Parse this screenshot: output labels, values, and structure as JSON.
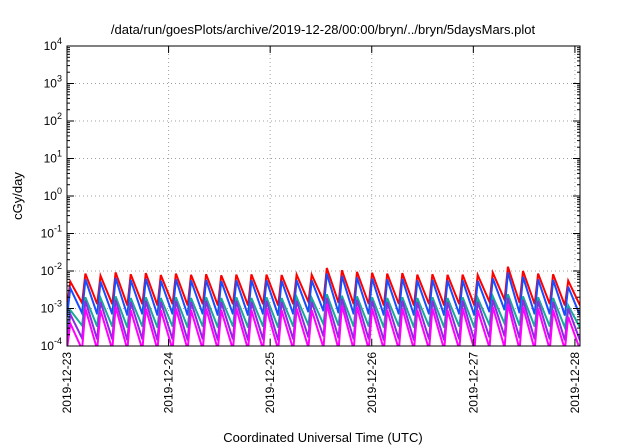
{
  "chart_data": {
    "type": "line",
    "title": "/data/run/goesPlots/archive/2019-12-28/00:00/bryn/../bryn/5daysMars.plot",
    "xlabel": "Coordinated Universal Time (UTC)",
    "ylabel": "cGy/day",
    "yscale": "log",
    "ylim": [
      0.0001,
      10000
    ],
    "xlim": [
      0,
      5.05
    ],
    "x_tick_values": [
      0,
      1,
      2,
      3,
      4,
      5
    ],
    "x_tick_labels": [
      "2019-12-23",
      "2019-12-24",
      "2019-12-25",
      "2019-12-26",
      "2019-12-27",
      "2019-12-28"
    ],
    "y_ticks": [
      {
        "base": "10",
        "exp": "4",
        "value": 10000
      },
      {
        "base": "10",
        "exp": "3",
        "value": 1000
      },
      {
        "base": "10",
        "exp": "2",
        "value": 100
      },
      {
        "base": "10",
        "exp": "1",
        "value": 10
      },
      {
        "base": "10",
        "exp": "0",
        "value": 1
      },
      {
        "base": "10",
        "exp": "-1",
        "value": 0.1
      },
      {
        "base": "10",
        "exp": "-2",
        "value": 0.01
      },
      {
        "base": "10",
        "exp": "-3",
        "value": 0.001
      },
      {
        "base": "10",
        "exp": "-4",
        "value": 0.0001
      }
    ],
    "grid": true,
    "series": [
      {
        "name": "series-red",
        "color": "#ff0000",
        "peaks": [
          0.0052,
          0.0085,
          0.0075,
          0.0092,
          0.0082,
          0.0088,
          0.0078,
          0.0085,
          0.0079,
          0.0082,
          0.0077,
          0.008,
          0.0081,
          0.008,
          0.0078,
          0.008,
          0.0079,
          0.012,
          0.0105,
          0.0095,
          0.009,
          0.0085,
          0.0088,
          0.008,
          0.0082,
          0.0079,
          0.008,
          0.0078,
          0.009,
          0.013,
          0.01,
          0.0085,
          0.0082,
          0.0055
        ],
        "troughs": [
          0.0011,
          0.0014,
          0.0013,
          0.0013,
          0.0012,
          0.0013,
          0.0012,
          0.0013,
          0.0012,
          0.0013,
          0.0012,
          0.0013,
          0.0012,
          0.0013,
          0.0012,
          0.0013,
          0.0015,
          0.0016,
          0.0014,
          0.0013,
          0.0013,
          0.0012,
          0.0013,
          0.0012,
          0.0013,
          0.0012,
          0.0013,
          0.0012,
          0.0015,
          0.0017,
          0.0014,
          0.0013,
          0.0013,
          0.0012
        ]
      },
      {
        "name": "series-blue",
        "color": "#1a4cff",
        "peaks": [
          0.0035,
          0.006,
          0.0052,
          0.0065,
          0.0058,
          0.0062,
          0.0055,
          0.006,
          0.0056,
          0.0058,
          0.0054,
          0.0056,
          0.0057,
          0.0056,
          0.0055,
          0.0056,
          0.0056,
          0.0085,
          0.0074,
          0.0067,
          0.0063,
          0.006,
          0.0062,
          0.0056,
          0.0058,
          0.0056,
          0.0056,
          0.0055,
          0.0063,
          0.0092,
          0.007,
          0.006,
          0.0058,
          0.0038
        ],
        "troughs": [
          0.0006,
          0.00075,
          0.0007,
          0.0007,
          0.00065,
          0.0007,
          0.00065,
          0.0007,
          0.00065,
          0.0007,
          0.00065,
          0.0007,
          0.00065,
          0.0007,
          0.00065,
          0.0007,
          0.0008,
          0.00085,
          0.00075,
          0.0007,
          0.0007,
          0.00065,
          0.0007,
          0.00065,
          0.0007,
          0.00065,
          0.0007,
          0.00065,
          0.0008,
          0.0009,
          0.00075,
          0.0007,
          0.0007,
          0.00065
        ]
      },
      {
        "name": "series-teal",
        "color": "#18a89a",
        "peaks": [
          0.0009,
          0.002,
          0.0019,
          0.0021,
          0.0019,
          0.002,
          0.0019,
          0.002,
          0.0019,
          0.002,
          0.0019,
          0.002,
          0.0019,
          0.002,
          0.0019,
          0.002,
          0.0019,
          0.0024,
          0.0022,
          0.0021,
          0.002,
          0.0019,
          0.002,
          0.0019,
          0.002,
          0.0019,
          0.002,
          0.0019,
          0.0021,
          0.0024,
          0.0021,
          0.002,
          0.0019,
          0.0012
        ],
        "troughs": [
          0.00028,
          0.00035,
          0.00033,
          0.00033,
          0.00031,
          0.00033,
          0.00031,
          0.00033,
          0.00031,
          0.00033,
          0.00031,
          0.00033,
          0.00031,
          0.00033,
          0.00031,
          0.00033,
          0.00036,
          0.00038,
          0.00035,
          0.00033,
          0.00033,
          0.00031,
          0.00033,
          0.00031,
          0.00033,
          0.00031,
          0.00033,
          0.00031,
          0.00036,
          0.00039,
          0.00035,
          0.00033,
          0.00033,
          0.00031
        ]
      },
      {
        "name": "series-purple",
        "color": "#8b2be2",
        "peaks": [
          0.0007,
          0.0016,
          0.0015,
          0.0017,
          0.0015,
          0.0016,
          0.0015,
          0.0016,
          0.0015,
          0.0016,
          0.0015,
          0.0016,
          0.0015,
          0.0016,
          0.0015,
          0.0016,
          0.0015,
          0.0019,
          0.0018,
          0.0017,
          0.0016,
          0.0015,
          0.0016,
          0.0015,
          0.0016,
          0.0015,
          0.0016,
          0.0015,
          0.0017,
          0.0019,
          0.0017,
          0.0016,
          0.0015,
          0.001
        ],
        "troughs": [
          0.00012,
          0.00016,
          0.00015,
          0.00015,
          0.00014,
          0.00015,
          0.00014,
          0.00015,
          0.00014,
          0.00015,
          0.00014,
          0.00015,
          0.00014,
          0.00015,
          0.00014,
          0.00015,
          0.00017,
          0.00018,
          0.00016,
          0.00015,
          0.00015,
          0.00014,
          0.00015,
          0.00014,
          0.00015,
          0.00014,
          0.00015,
          0.00014,
          0.00017,
          0.00018,
          0.00016,
          0.00015,
          0.00015,
          0.00014
        ]
      },
      {
        "name": "series-magenta",
        "color": "#ff00ff",
        "peaks": [
          0.0004,
          0.001,
          0.0009,
          0.0011,
          0.0009,
          0.001,
          0.0009,
          0.001,
          0.0009,
          0.001,
          0.0009,
          0.001,
          0.0009,
          0.001,
          0.0009,
          0.001,
          0.0009,
          0.0013,
          0.0012,
          0.0011,
          0.001,
          0.0009,
          0.001,
          0.0009,
          0.001,
          0.0009,
          0.001,
          0.0009,
          0.0011,
          0.0013,
          0.0011,
          0.001,
          0.0009,
          0.0006
        ],
        "troughs": [
          8e-05,
          8e-05,
          8e-05,
          8e-05,
          8e-05,
          8e-05,
          8e-05,
          8e-05,
          8e-05,
          8e-05,
          8e-05,
          8e-05,
          8e-05,
          8e-05,
          8e-05,
          8e-05,
          9e-05,
          9e-05,
          8e-05,
          8e-05,
          8e-05,
          8e-05,
          8e-05,
          8e-05,
          8e-05,
          8e-05,
          8e-05,
          8e-05,
          9e-05,
          9e-05,
          8e-05,
          8e-05,
          8e-05,
          8e-05
        ]
      }
    ]
  }
}
